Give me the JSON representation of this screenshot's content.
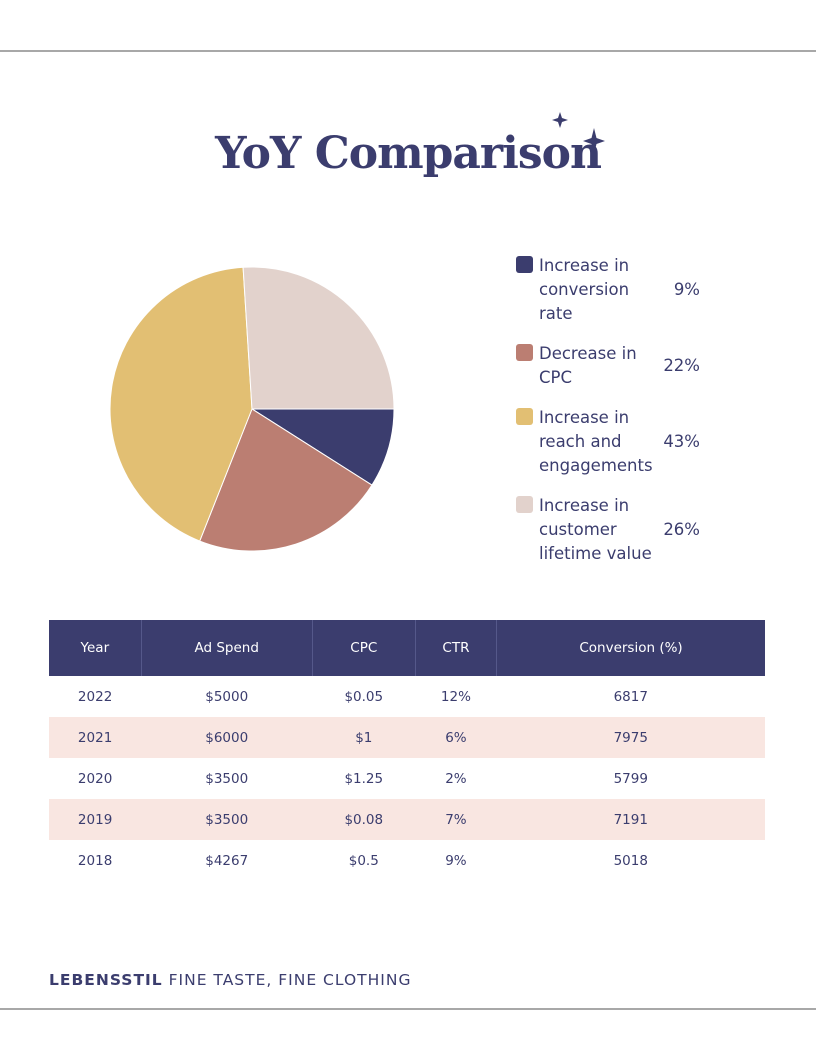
{
  "title": "YoY Comparison",
  "chart_data": {
    "type": "pie",
    "slices": [
      {
        "label": "Increase in conversion rate",
        "value": 9,
        "display": "9%",
        "color": "#3b3d6e"
      },
      {
        "label": "Decrease in CPC",
        "value": 22,
        "display": "22%",
        "color": "#bb7e72"
      },
      {
        "label": "Increase in reach and engagements",
        "value": 43,
        "display": "43%",
        "color": "#e2bf73"
      },
      {
        "label": "Increase in customer lifetime value",
        "value": 26,
        "display": "26%",
        "color": "#e2d2cc"
      }
    ],
    "legend_position": "right"
  },
  "table": {
    "headers": [
      "Year",
      "Ad Spend",
      "CPC",
      "CTR",
      "Conversion (%)"
    ],
    "rows": [
      [
        "2022",
        "$5000",
        "$0.05",
        "12%",
        "6817"
      ],
      [
        "2021",
        "$6000",
        "$1",
        "6%",
        "7975"
      ],
      [
        "2020",
        "$3500",
        "$1.25",
        "2%",
        "5799"
      ],
      [
        "2019",
        "$3500",
        "$0.08",
        "7%",
        "7191"
      ],
      [
        "2018",
        "$4267",
        "$0.5",
        "9%",
        "5018"
      ]
    ]
  },
  "footer": {
    "brand": "LEBENSSTIL",
    "tagline": "FINE TASTE, FINE CLOTHING"
  }
}
